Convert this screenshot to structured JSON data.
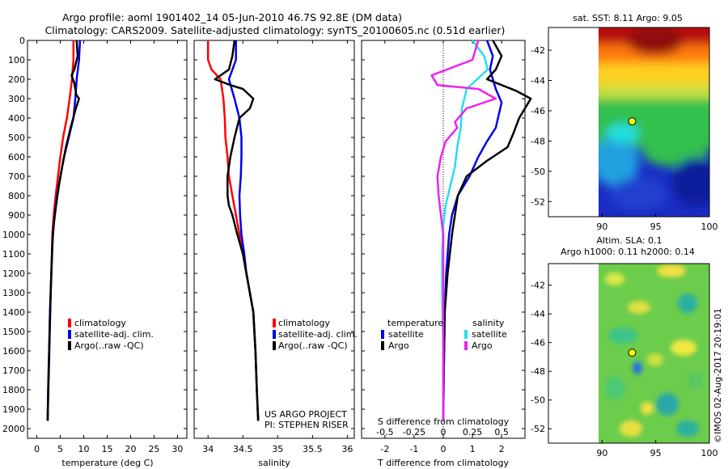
{
  "header": {
    "title_line1": "Argo profile: aoml 1901402_14 05-Jun-2010 46.7S 92.8E (DM data)",
    "title_line2": "Climatology: CARS2009. Satellite-adjusted climatology: synTS_20100605.nc (0.51d earlier)"
  },
  "colors": {
    "climatology": "#ff0000",
    "satellite": "#0000ee",
    "argo": "#000000",
    "salinity_satellite": "#22e0ee",
    "salinity_argo": "#ee22ee"
  },
  "chart_data": [
    {
      "type": "line",
      "name": "temperature-profile",
      "xlabel": "temperature (deg C)",
      "ylabel": "",
      "xlim": [
        -2,
        32
      ],
      "ylim": [
        2050,
        0
      ],
      "xticks": [
        0,
        5,
        10,
        15,
        20,
        25,
        30
      ],
      "yticks": [
        0,
        100,
        200,
        300,
        400,
        500,
        600,
        700,
        800,
        900,
        1000,
        1100,
        1200,
        1300,
        1400,
        1500,
        1600,
        1700,
        1800,
        1900,
        2000
      ],
      "legend": [
        "climatology",
        "satellite-adj. clim.",
        "Argo(..raw -QC)"
      ],
      "legend_position": "bottom-center",
      "series": [
        {
          "name": "climatology",
          "color": "#ff0000",
          "points": [
            [
              7.8,
              0
            ],
            [
              7.8,
              100
            ],
            [
              7.5,
              200
            ],
            [
              7.0,
              300
            ],
            [
              6.4,
              400
            ],
            [
              5.6,
              500
            ],
            [
              5.0,
              600
            ],
            [
              4.5,
              700
            ],
            [
              4.0,
              800
            ],
            [
              3.6,
              900
            ],
            [
              3.3,
              1000
            ],
            [
              3.1,
              1200
            ],
            [
              2.8,
              1400
            ],
            [
              2.6,
              1600
            ],
            [
              2.4,
              1800
            ],
            [
              2.3,
              1960
            ]
          ]
        },
        {
          "name": "satellite-adj. clim.",
          "color": "#0000ee",
          "points": [
            [
              9.2,
              0
            ],
            [
              9.0,
              100
            ],
            [
              8.5,
              200
            ],
            [
              8.2,
              300
            ],
            [
              7.8,
              400
            ],
            [
              6.8,
              500
            ],
            [
              5.8,
              600
            ],
            [
              5.0,
              700
            ],
            [
              4.3,
              800
            ],
            [
              3.8,
              900
            ],
            [
              3.4,
              1000
            ],
            [
              3.1,
              1200
            ],
            [
              2.8,
              1400
            ],
            [
              2.6,
              1600
            ],
            [
              2.4,
              1800
            ],
            [
              2.3,
              1960
            ]
          ]
        },
        {
          "name": "Argo(..raw -QC)",
          "color": "#000000",
          "points": [
            [
              8.5,
              0
            ],
            [
              8.7,
              80
            ],
            [
              8.0,
              150
            ],
            [
              7.4,
              180
            ],
            [
              8.0,
              220
            ],
            [
              8.4,
              280
            ],
            [
              9.0,
              300
            ],
            [
              8.2,
              360
            ],
            [
              7.2,
              450
            ],
            [
              6.2,
              550
            ],
            [
              5.4,
              650
            ],
            [
              4.7,
              750
            ],
            [
              4.1,
              850
            ],
            [
              3.6,
              950
            ],
            [
              3.3,
              1050
            ],
            [
              3.0,
              1250
            ],
            [
              2.8,
              1450
            ],
            [
              2.6,
              1650
            ],
            [
              2.4,
              1850
            ],
            [
              2.3,
              1960
            ]
          ]
        }
      ]
    },
    {
      "type": "line",
      "name": "salinity-profile",
      "xlabel": "salinity",
      "ylabel": "",
      "xlim": [
        33.8,
        36.1
      ],
      "ylim": [
        2050,
        0
      ],
      "xticks": [
        34,
        34.5,
        35,
        35.5,
        36
      ],
      "xticklabels": [
        "34",
        "34.5",
        "35",
        "35.5",
        "36"
      ],
      "legend": [
        "climatology",
        "satellite-adj. clim.",
        "Argo(..raw -QC)"
      ],
      "legend_position": "bottom-right",
      "annotation_line1": "US ARGO PROJECT",
      "annotation_line2": "PI: STEPHEN RISER",
      "series": [
        {
          "name": "climatology",
          "color": "#ff0000",
          "points": [
            [
              34.0,
              0
            ],
            [
              34.0,
              100
            ],
            [
              34.05,
              150
            ],
            [
              34.18,
              200
            ],
            [
              34.22,
              300
            ],
            [
              34.24,
              400
            ],
            [
              34.25,
              500
            ],
            [
              34.28,
              600
            ],
            [
              34.3,
              700
            ],
            [
              34.35,
              800
            ],
            [
              34.4,
              900
            ],
            [
              34.45,
              1000
            ],
            [
              34.5,
              1100
            ],
            [
              34.55,
              1200
            ],
            [
              34.6,
              1300
            ],
            [
              34.65,
              1400
            ],
            [
              34.68,
              1600
            ],
            [
              34.7,
              1800
            ],
            [
              34.72,
              1960
            ]
          ]
        },
        {
          "name": "satellite-adj. clim.",
          "color": "#0000ee",
          "points": [
            [
              34.4,
              0
            ],
            [
              34.4,
              100
            ],
            [
              34.3,
              200
            ],
            [
              34.38,
              300
            ],
            [
              34.45,
              400
            ],
            [
              34.48,
              500
            ],
            [
              34.48,
              600
            ],
            [
              34.47,
              700
            ],
            [
              34.45,
              800
            ],
            [
              34.46,
              900
            ],
            [
              34.48,
              1000
            ],
            [
              34.52,
              1100
            ],
            [
              34.55,
              1200
            ],
            [
              34.6,
              1300
            ],
            [
              34.65,
              1400
            ],
            [
              34.68,
              1600
            ],
            [
              34.7,
              1800
            ],
            [
              34.72,
              1960
            ]
          ]
        },
        {
          "name": "Argo(..raw -QC)",
          "color": "#000000",
          "points": [
            [
              34.38,
              0
            ],
            [
              34.35,
              80
            ],
            [
              34.3,
              150
            ],
            [
              34.1,
              200
            ],
            [
              34.32,
              230
            ],
            [
              34.5,
              250
            ],
            [
              34.65,
              300
            ],
            [
              34.6,
              350
            ],
            [
              34.45,
              400
            ],
            [
              34.38,
              500
            ],
            [
              34.32,
              600
            ],
            [
              34.28,
              700
            ],
            [
              34.28,
              800
            ],
            [
              34.3,
              850
            ],
            [
              34.35,
              900
            ],
            [
              34.42,
              1000
            ],
            [
              34.5,
              1100
            ],
            [
              34.55,
              1200
            ],
            [
              34.6,
              1300
            ],
            [
              34.65,
              1400
            ],
            [
              34.68,
              1600
            ],
            [
              34.7,
              1800
            ],
            [
              34.72,
              1960
            ]
          ]
        }
      ]
    },
    {
      "type": "line",
      "name": "difference-profile",
      "xlabel": "T difference from climatology",
      "xlabel2": "S difference from climatology",
      "xlim": [
        -2.8,
        2.8
      ],
      "ylim": [
        2050,
        0
      ],
      "xticks": [
        -2,
        -1,
        0,
        1,
        2
      ],
      "xticks_salinity": [
        -0.5,
        -0.25,
        0,
        0.25,
        0.5
      ],
      "xticklabels_salinity": [
        "-0.5",
        "-0.25",
        "0",
        "0.25",
        "0.5"
      ],
      "legend_temperature_title": "temperature",
      "legend_salinity_title": "salinity",
      "legend_temperature": [
        "satellite",
        "Argo"
      ],
      "legend_salinity": [
        "satellite",
        "Argo"
      ],
      "series": [
        {
          "name": "temperature satellite",
          "color": "#0000ee",
          "points": [
            [
              1.5,
              0
            ],
            [
              1.7,
              80
            ],
            [
              1.6,
              150
            ],
            [
              1.8,
              250
            ],
            [
              2.0,
              320
            ],
            [
              1.8,
              450
            ],
            [
              1.5,
              520
            ],
            [
              1.2,
              600
            ],
            [
              0.9,
              700
            ],
            [
              0.5,
              800
            ],
            [
              0.3,
              900
            ],
            [
              0.2,
              1000
            ],
            [
              0.1,
              1200
            ],
            [
              0.05,
              1400
            ],
            [
              0.02,
              1700
            ],
            [
              0.0,
              1960
            ]
          ]
        },
        {
          "name": "temperature Argo",
          "color": "#000000",
          "points": [
            [
              1.7,
              0
            ],
            [
              2.0,
              80
            ],
            [
              1.8,
              150
            ],
            [
              1.5,
              200
            ],
            [
              2.5,
              260
            ],
            [
              3.0,
              300
            ],
            [
              2.6,
              400
            ],
            [
              2.4,
              480
            ],
            [
              2.2,
              550
            ],
            [
              1.5,
              620
            ],
            [
              0.8,
              700
            ],
            [
              0.5,
              800
            ],
            [
              0.4,
              900
            ],
            [
              0.3,
              1000
            ],
            [
              0.15,
              1200
            ],
            [
              0.05,
              1400
            ],
            [
              0.02,
              1700
            ],
            [
              0.0,
              1960
            ]
          ]
        },
        {
          "name": "salinity satellite",
          "color": "#22e0ee",
          "points": [
            [
              0.25,
              0
            ],
            [
              0.35,
              80
            ],
            [
              0.38,
              150
            ],
            [
              0.2,
              250
            ],
            [
              0.16,
              350
            ],
            [
              0.15,
              450
            ],
            [
              0.12,
              550
            ],
            [
              0.1,
              650
            ],
            [
              0.06,
              750
            ],
            [
              0.02,
              850
            ],
            [
              0.0,
              950
            ],
            [
              -0.01,
              1100
            ],
            [
              -0.01,
              1300
            ],
            [
              0.0,
              1600
            ],
            [
              0.0,
              1960
            ]
          ]
        },
        {
          "name": "salinity Argo",
          "color": "#ee22ee",
          "points": [
            [
              0.3,
              0
            ],
            [
              0.25,
              100
            ],
            [
              -0.1,
              180
            ],
            [
              -0.05,
              230
            ],
            [
              0.3,
              250
            ],
            [
              0.45,
              300
            ],
            [
              0.2,
              350
            ],
            [
              0.1,
              420
            ],
            [
              0.12,
              450
            ],
            [
              0.02,
              520
            ],
            [
              -0.02,
              600
            ],
            [
              -0.05,
              700
            ],
            [
              -0.04,
              800
            ],
            [
              -0.03,
              850
            ],
            [
              -0.02,
              900
            ],
            [
              0.0,
              1000
            ],
            [
              0.0,
              1200
            ],
            [
              0.0,
              1600
            ],
            [
              0.0,
              1960
            ]
          ]
        }
      ]
    },
    {
      "type": "heatmap",
      "name": "sst-map",
      "title": "sat. SST: 8.11  Argo: 9.05",
      "xlim": [
        85,
        100
      ],
      "ylim": [
        -53,
        -40.5
      ],
      "xticks": [
        90,
        95,
        100
      ],
      "yticks": [
        -42,
        -44,
        -46,
        -48,
        -50,
        -52
      ],
      "marker": {
        "lon": 92.8,
        "lat": -46.7
      }
    },
    {
      "type": "heatmap",
      "name": "sla-map",
      "title_line1": "Altim. SLA: 0.1",
      "title_line2": "Argo h1000: 0.11  h2000: 0.14",
      "xlim": [
        85,
        100
      ],
      "ylim": [
        -53,
        -40.5
      ],
      "xticks": [
        90,
        95,
        100
      ],
      "yticks": [
        -42,
        -44,
        -46,
        -48,
        -50,
        -52
      ],
      "marker": {
        "lon": 92.8,
        "lat": -46.7
      }
    }
  ],
  "footer": {
    "stamp": "©IMOS 02-Aug-2017 20:19:01"
  }
}
